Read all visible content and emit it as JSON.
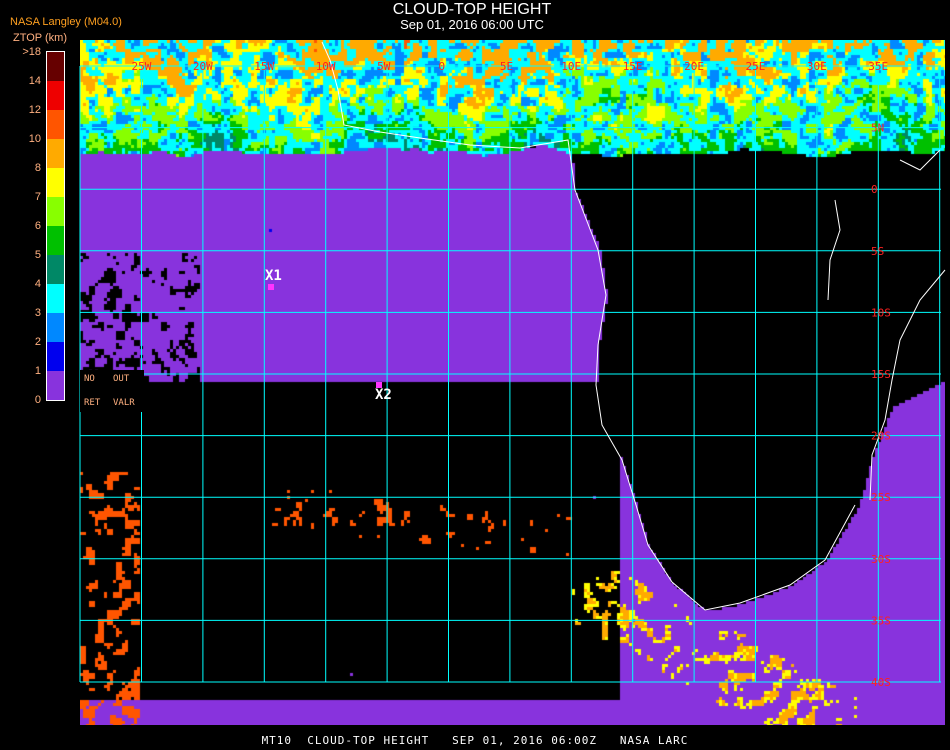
{
  "header": {
    "title": "CLOUD-TOP HEIGHT",
    "subtitle": "Sep 01, 2016 06:00 UTC",
    "source": "NASA Langley (M04.0)",
    "unit_label": "ZTOP (km)"
  },
  "legend": {
    "tick_labels": [
      ">18",
      "14",
      "12",
      "10",
      "8",
      "7",
      "6",
      "5",
      "4",
      "3",
      "2",
      "1",
      "0"
    ],
    "colors_top_to_bottom": [
      "#660000",
      "#ee0000",
      "#ff5500",
      "#ffaa00",
      "#ffff00",
      "#88ff00",
      "#00c000",
      "#008866",
      "#00ffff",
      "#0088ff",
      "#0000ee",
      "#8833dd"
    ],
    "no_retrieval": {
      "line1_a": "NO",
      "line1_b": "OUT",
      "line2_a": "RET",
      "line2_b": "VALR"
    }
  },
  "map": {
    "grid_color": "#00ffff",
    "label_color": "#ff2020",
    "longitude_labels": [
      "25W",
      "20W",
      "15W",
      "10W",
      "5W",
      "0",
      "5E",
      "10E",
      "15E",
      "20E",
      "25E",
      "30E",
      "35E"
    ],
    "latitude_labels": [
      "5N",
      "0",
      "5S",
      "10S",
      "15S",
      "20S",
      "25S",
      "30S",
      "35S",
      "40S"
    ],
    "markers": [
      {
        "label": "X1"
      },
      {
        "label": "X2"
      }
    ],
    "marker_color": "#ff33ff"
  },
  "footer": {
    "text": "MT10  CLOUD-TOP HEIGHT   SEP 01, 2016 06:00Z   NASA LARC"
  }
}
